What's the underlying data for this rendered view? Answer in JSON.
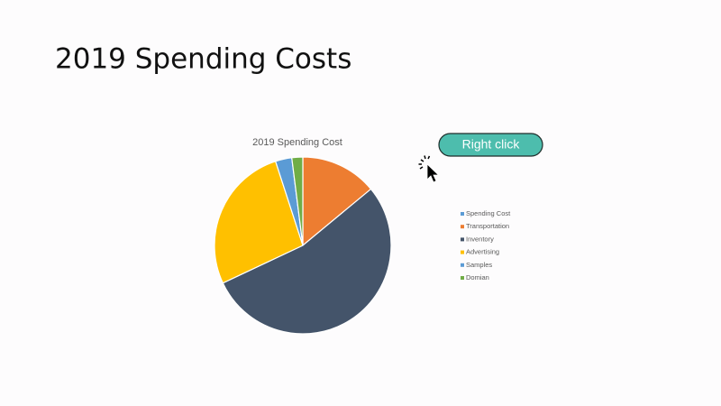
{
  "slide": {
    "title": "2019 Spending Costs"
  },
  "chart_data": {
    "type": "pie",
    "title": "2019 Spending Cost",
    "categories": [
      "Spending Cost",
      "Transportation",
      "Inventory",
      "Advertising",
      "Samples",
      "Domian"
    ],
    "values": [
      null,
      14,
      54,
      27,
      3,
      2
    ],
    "colors": [
      "#5b9bd5",
      "#ed7d31",
      "#44546a",
      "#ffc000",
      "#5b9bd5",
      "#70ad47"
    ],
    "legend": "right"
  },
  "button": {
    "label": "Right click"
  }
}
